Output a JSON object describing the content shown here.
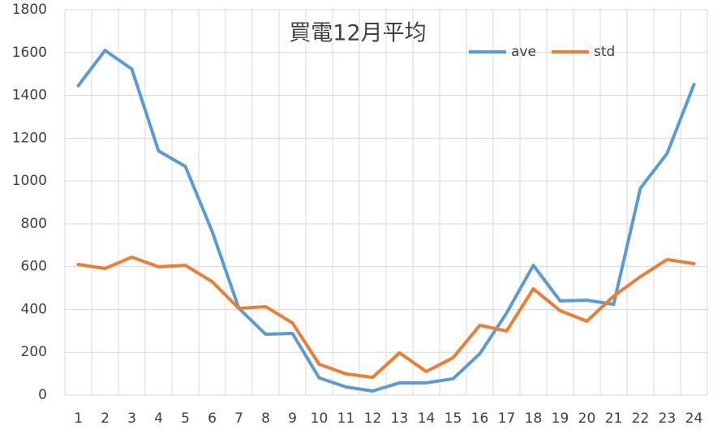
{
  "chart_data": {
    "type": "line",
    "title": "買電12月平均",
    "categories": [
      "1",
      "2",
      "3",
      "4",
      "5",
      "6",
      "7",
      "8",
      "9",
      "10",
      "11",
      "12",
      "13",
      "14",
      "15",
      "16",
      "17",
      "18",
      "19",
      "20",
      "21",
      "22",
      "23",
      "24"
    ],
    "series": [
      {
        "name": "ave",
        "color": "#5b9bd5",
        "values": [
          1445,
          1610,
          1523,
          1140,
          1068,
          765,
          405,
          284,
          288,
          80,
          38,
          19,
          57,
          57,
          76,
          193,
          383,
          606,
          440,
          443,
          424,
          966,
          1129,
          1451
        ]
      },
      {
        "name": "std",
        "color": "#ed7d31",
        "values": [
          610,
          591,
          644,
          599,
          606,
          530,
          405,
          413,
          337,
          144,
          99,
          83,
          197,
          110,
          174,
          326,
          299,
          496,
          394,
          345,
          462,
          553,
          633,
          614
        ]
      }
    ],
    "ylim": [
      0,
      1800
    ],
    "yticks": [
      0,
      200,
      400,
      600,
      800,
      1000,
      1200,
      1400,
      1600,
      1800
    ],
    "grid": true,
    "legend": "top-right"
  }
}
